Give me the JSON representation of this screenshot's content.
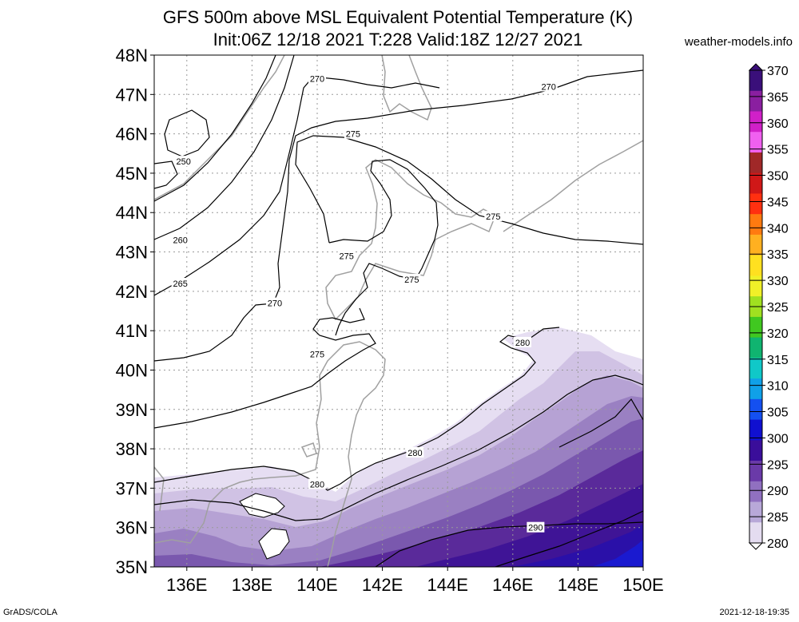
{
  "header": {
    "title": "GFS 500m above MSL Equivalent Potential Temperature (K)",
    "subtitle": "Init:06Z 12/18 2021 T:228 Valid:18Z 12/27 2021",
    "credit": "weather-models.info"
  },
  "footer": {
    "left": "GrADS/COLA",
    "right": "2021-12-18-19:35"
  },
  "chart_data": {
    "type": "heatmap",
    "title": "GFS 500m above MSL Equivalent Potential Temperature (K)",
    "subtitle": "Init:06Z 12/18 2021 T:228 Valid:18Z 12/27 2021",
    "x_ticks": [
      "136E",
      "138E",
      "140E",
      "142E",
      "144E",
      "146E",
      "148E",
      "150E"
    ],
    "x_values": [
      136,
      138,
      140,
      142,
      144,
      146,
      148,
      150
    ],
    "y_ticks": [
      "48N",
      "47N",
      "46N",
      "45N",
      "44N",
      "43N",
      "42N",
      "41N",
      "40N",
      "39N",
      "38N",
      "37N",
      "36N",
      "35N"
    ],
    "y_values": [
      48,
      47,
      46,
      45,
      44,
      43,
      42,
      41,
      40,
      39,
      38,
      37,
      36,
      35
    ],
    "xlim": [
      135,
      150
    ],
    "ylim": [
      35,
      48
    ],
    "grid": true,
    "colorbar": {
      "labels": [
        "370",
        "365",
        "360",
        "355",
        "350",
        "345",
        "340",
        "335",
        "330",
        "325",
        "320",
        "315",
        "310",
        "305",
        "300",
        "295",
        "290",
        "285",
        "280"
      ],
      "values": [
        370,
        365,
        360,
        355,
        350,
        345,
        340,
        335,
        330,
        325,
        320,
        315,
        310,
        305,
        300,
        295,
        290,
        285,
        280
      ],
      "colors": [
        "#3a0f7a",
        "#8a1fa0",
        "#d020c8",
        "#f060f0",
        "#a02828",
        "#d01818",
        "#ff3010",
        "#ff7a10",
        "#ffb020",
        "#ffe020",
        "#f0f028",
        "#a0e020",
        "#40c820",
        "#10b470",
        "#10c8c8",
        "#10a0e8",
        "#1450f0",
        "#1010d0",
        "#3a0e9a",
        "#6a3aa8",
        "#9070c0",
        "#b8a8d8",
        "#e4dcf0"
      ]
    },
    "contour_labels": [
      {
        "text": "250",
        "lon": 135.9,
        "lat": 45.3
      },
      {
        "text": "260",
        "lon": 135.8,
        "lat": 43.3
      },
      {
        "text": "265",
        "lon": 135.8,
        "lat": 42.2
      },
      {
        "text": "270",
        "lon": 138.7,
        "lat": 41.7
      },
      {
        "text": "270",
        "lon": 140.0,
        "lat": 47.4
      },
      {
        "text": "270",
        "lon": 147.1,
        "lat": 47.2
      },
      {
        "text": "275",
        "lon": 141.1,
        "lat": 46.0
      },
      {
        "text": "275",
        "lon": 140.9,
        "lat": 42.9
      },
      {
        "text": "275",
        "lon": 142.9,
        "lat": 42.3
      },
      {
        "text": "275",
        "lon": 145.4,
        "lat": 43.9
      },
      {
        "text": "275",
        "lon": 140.0,
        "lat": 40.4
      },
      {
        "text": "280",
        "lon": 146.3,
        "lat": 40.7
      },
      {
        "text": "280",
        "lon": 143.0,
        "lat": 37.9
      },
      {
        "text": "280",
        "lon": 140.0,
        "lat": 37.1
      },
      {
        "text": "290",
        "lon": 146.7,
        "lat": 36.0
      }
    ]
  }
}
